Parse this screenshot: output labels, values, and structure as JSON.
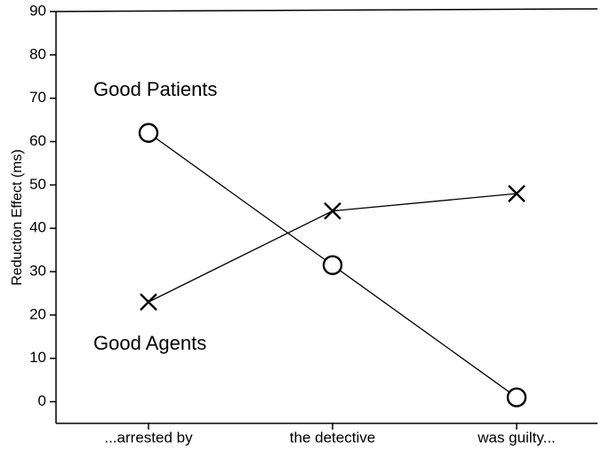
{
  "chart_data": {
    "type": "line",
    "y_label": "Reduction Effect (ms)",
    "categories": [
      "...arrested by",
      "the detective",
      "was guilty..."
    ],
    "series": [
      {
        "name": "Good Patients",
        "color": "#000000",
        "marker": "o",
        "values": [
          62,
          31.5,
          1
        ]
      },
      {
        "name": "Good Agents",
        "color": "#000000",
        "marker": "x",
        "values": [
          23,
          44,
          48
        ]
      }
    ],
    "ylim": [
      -5,
      90
    ],
    "yticks": [
      0,
      10,
      20,
      30,
      40,
      50,
      60,
      70,
      80,
      90
    ]
  }
}
